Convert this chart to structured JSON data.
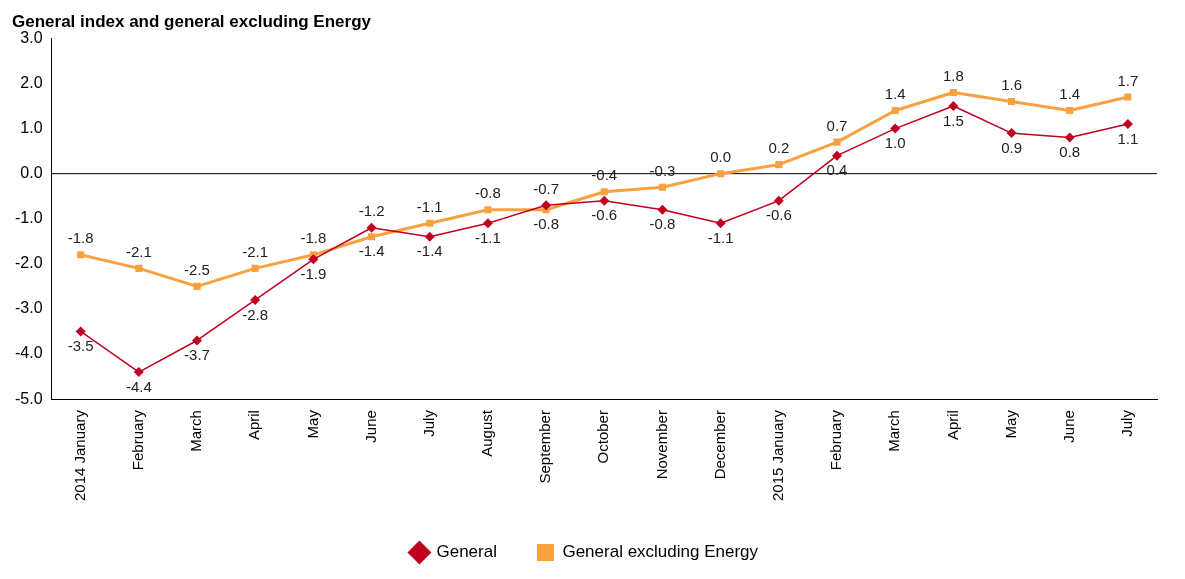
{
  "chart_data": {
    "type": "line",
    "title": "General index and general excluding Energy",
    "categories": [
      "2014 January",
      "February",
      "March",
      "April",
      "May",
      "June",
      "July",
      "August",
      "September",
      "October",
      "November",
      "December",
      "2015 January",
      "February",
      "March",
      "April",
      "May",
      "June",
      "July"
    ],
    "series": [
      {
        "name": "General",
        "color": "#c00020",
        "marker": "diamond",
        "values": [
          -3.5,
          -4.4,
          -3.7,
          -2.8,
          -1.9,
          -1.2,
          -1.4,
          -1.1,
          -0.7,
          -0.6,
          -0.8,
          -1.1,
          -0.6,
          0.4,
          1.0,
          1.5,
          0.9,
          0.8,
          1.1
        ],
        "value_labels": [
          "-3.5",
          "-4.4",
          "-3.7",
          "-2.8",
          "-1.9",
          "-1.2",
          "-1.4",
          "-1.1",
          "-0.7",
          "-0.6",
          "-0.8",
          "-1.1",
          "-0.6",
          "0.4",
          "1.0",
          "1.5",
          "0.9",
          "0.8",
          "1.1"
        ]
      },
      {
        "name": "General excluding Energy",
        "color": "#f9a040",
        "marker": "square",
        "values": [
          -1.8,
          -2.1,
          -2.5,
          -2.1,
          -1.8,
          -1.4,
          -1.1,
          -0.8,
          -0.8,
          -0.4,
          -0.3,
          0.0,
          0.2,
          0.7,
          1.4,
          1.8,
          1.6,
          1.4,
          1.7
        ],
        "value_labels": [
          "-1.8",
          "-2.1",
          "-2.5",
          "-2.1",
          "-1.8",
          "-1.4",
          "-1.1",
          "-0.8",
          "-0.8",
          "-0.4",
          "-0.3",
          "0.0",
          "0.2",
          "0.7",
          "1.4",
          "1.8",
          "1.6",
          "1.4",
          "1.7"
        ]
      }
    ],
    "ylim": [
      -5,
      3
    ],
    "yticks": [
      {
        "value": 3,
        "label": "3.0"
      },
      {
        "value": 2,
        "label": "2.0"
      },
      {
        "value": 1,
        "label": "1.0"
      },
      {
        "value": 0,
        "label": "0.0"
      },
      {
        "value": -1,
        "label": "-1.0"
      },
      {
        "value": -2,
        "label": "-2.0"
      },
      {
        "value": -3,
        "label": "-3.0"
      },
      {
        "value": -4,
        "label": "-4.0"
      },
      {
        "value": -5,
        "label": "-5.0"
      }
    ],
    "ref_lines": [
      {
        "axis": "y",
        "value": 0,
        "color": "#000000"
      }
    ],
    "grid": false,
    "legend": "bottom"
  }
}
